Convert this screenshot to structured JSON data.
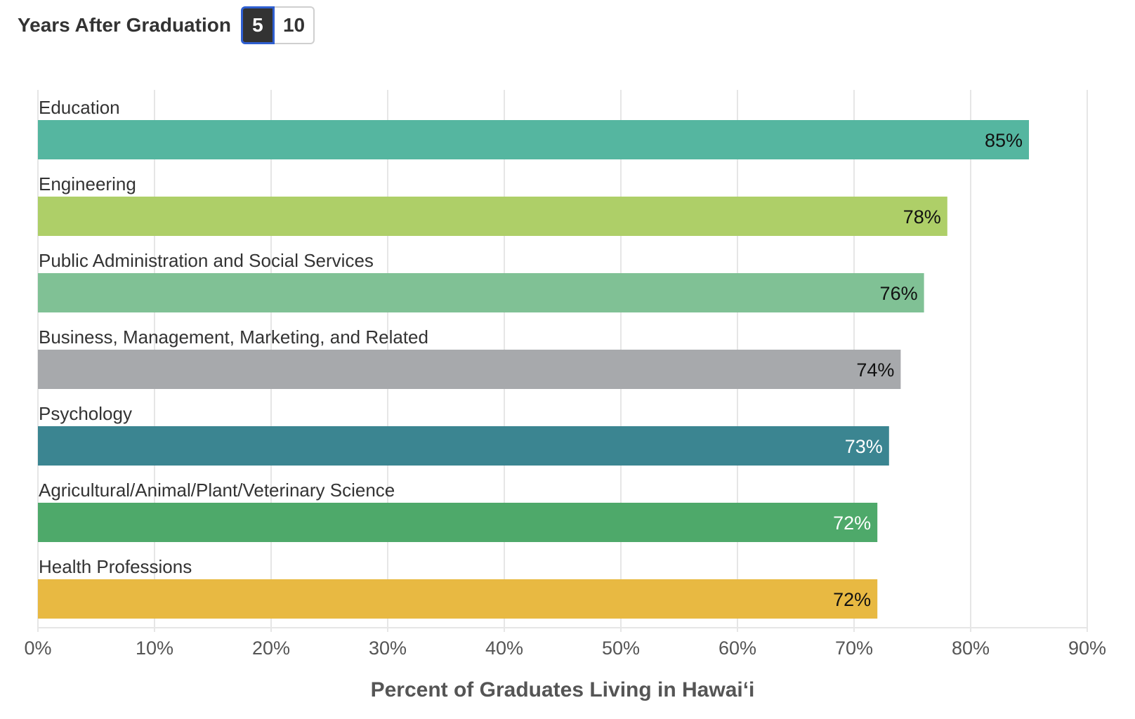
{
  "toolbar": {
    "label": "Years After Graduation",
    "options": [
      "5",
      "10"
    ],
    "selected": "5"
  },
  "chart_data": {
    "type": "bar",
    "orientation": "horizontal",
    "xlabel": "Percent of Graduates Living in Hawai‘i",
    "xlim": [
      0,
      90
    ],
    "xticks": [
      0,
      10,
      20,
      30,
      40,
      50,
      60,
      70,
      80,
      90
    ],
    "tick_suffix": "%",
    "grid": true,
    "categories": [
      "Education",
      "Engineering",
      "Public Administration and Social Services",
      "Business, Management, Marketing, and Related",
      "Psychology",
      "Agricultural/Animal/Plant/Veterinary Science",
      "Health Professions"
    ],
    "values": [
      85,
      78,
      76,
      74,
      73,
      72,
      72
    ],
    "value_labels": [
      "85%",
      "78%",
      "76%",
      "74%",
      "73%",
      "72%",
      "72%"
    ],
    "colors": [
      "#55b6a0",
      "#aecf68",
      "#80c195",
      "#a7a9ac",
      "#3b8591",
      "#4ea96a",
      "#e8b942"
    ],
    "label_colors": [
      "#111111",
      "#111111",
      "#111111",
      "#111111",
      "#ffffff",
      "#ffffff",
      "#111111"
    ]
  }
}
